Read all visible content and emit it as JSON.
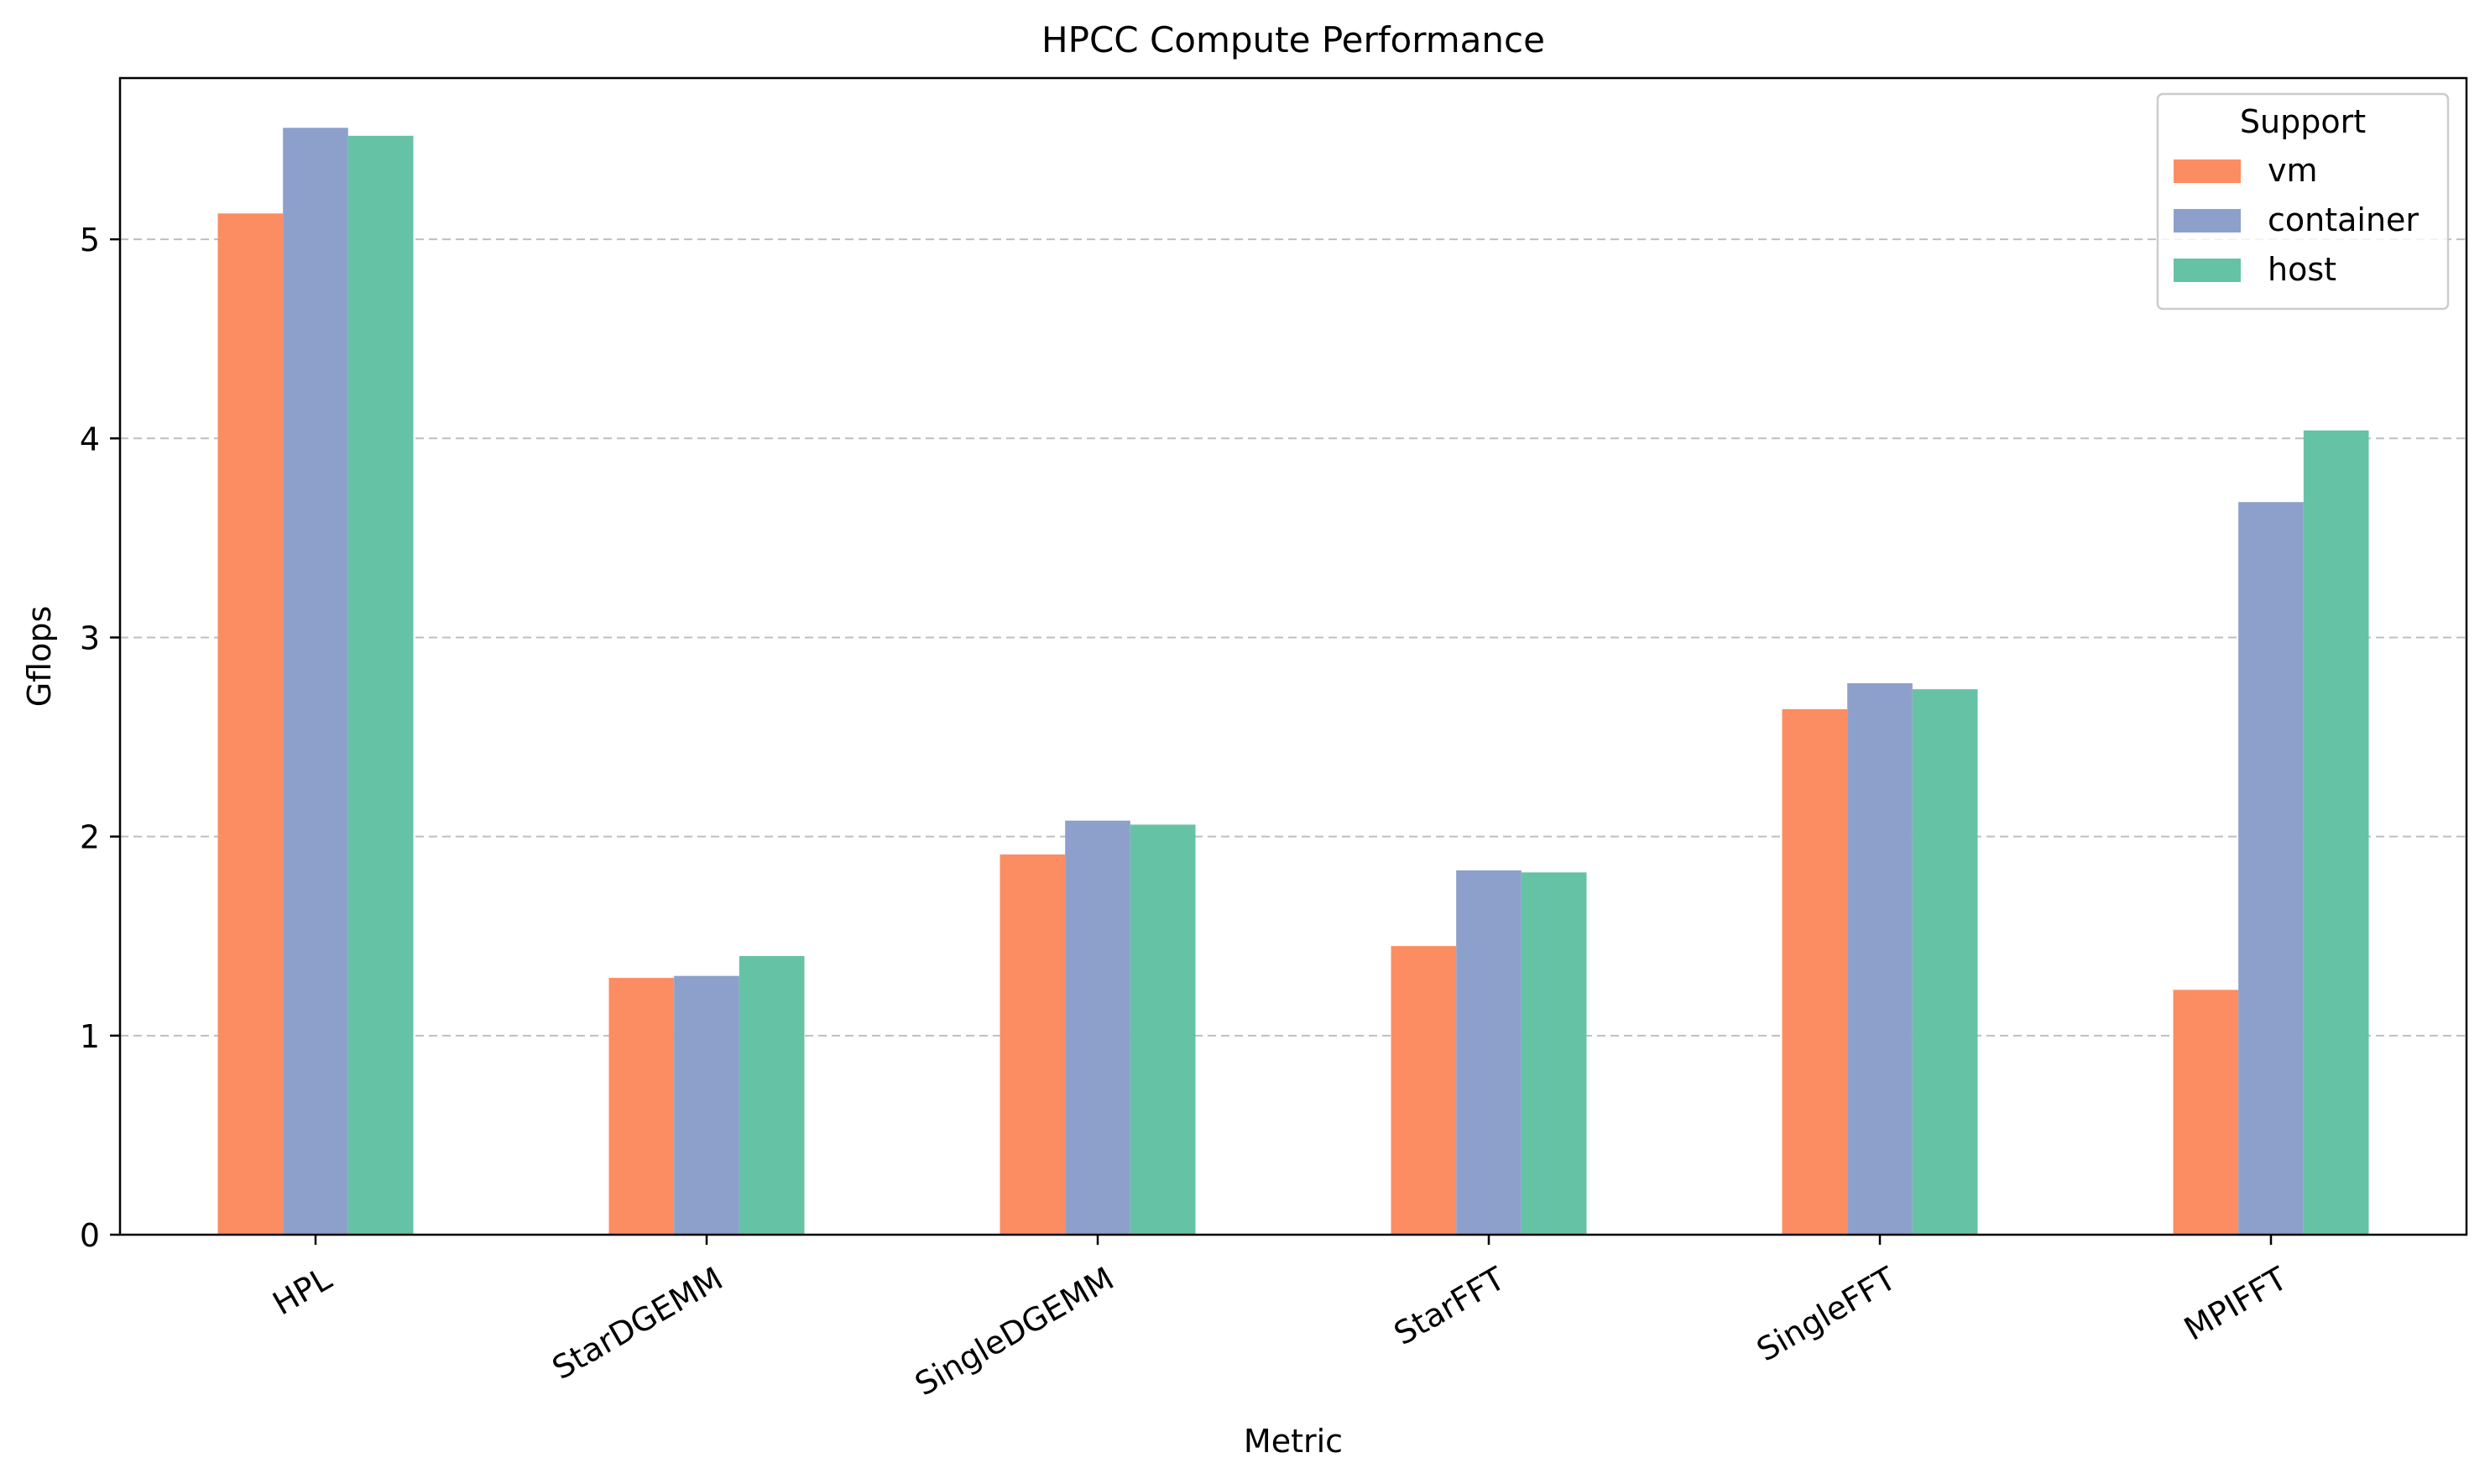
{
  "chart_data": {
    "type": "bar",
    "title": "HPCC Compute Performance",
    "xlabel": "Metric",
    "ylabel": "Gflops",
    "ylim": [
      0,
      5.81
    ],
    "yticks": [
      0,
      1,
      2,
      3,
      4,
      5
    ],
    "grid": "y-dashed",
    "legend_title": "Support",
    "legend_position": "top-right",
    "categories": [
      "HPL",
      "StarDGEMM",
      "SingleDGEMM",
      "StarFFT",
      "SingleFFT",
      "MPIFFT"
    ],
    "series": [
      {
        "name": "vm",
        "color": "#fc8d62",
        "values": [
          5.13,
          1.29,
          1.91,
          1.45,
          2.64,
          1.23
        ]
      },
      {
        "name": "container",
        "color": "#8da0cb",
        "values": [
          5.56,
          1.3,
          2.08,
          1.83,
          2.77,
          3.68
        ]
      },
      {
        "name": "host",
        "color": "#66c2a5",
        "values": [
          5.52,
          1.4,
          2.06,
          1.82,
          2.74,
          4.04
        ]
      }
    ]
  }
}
